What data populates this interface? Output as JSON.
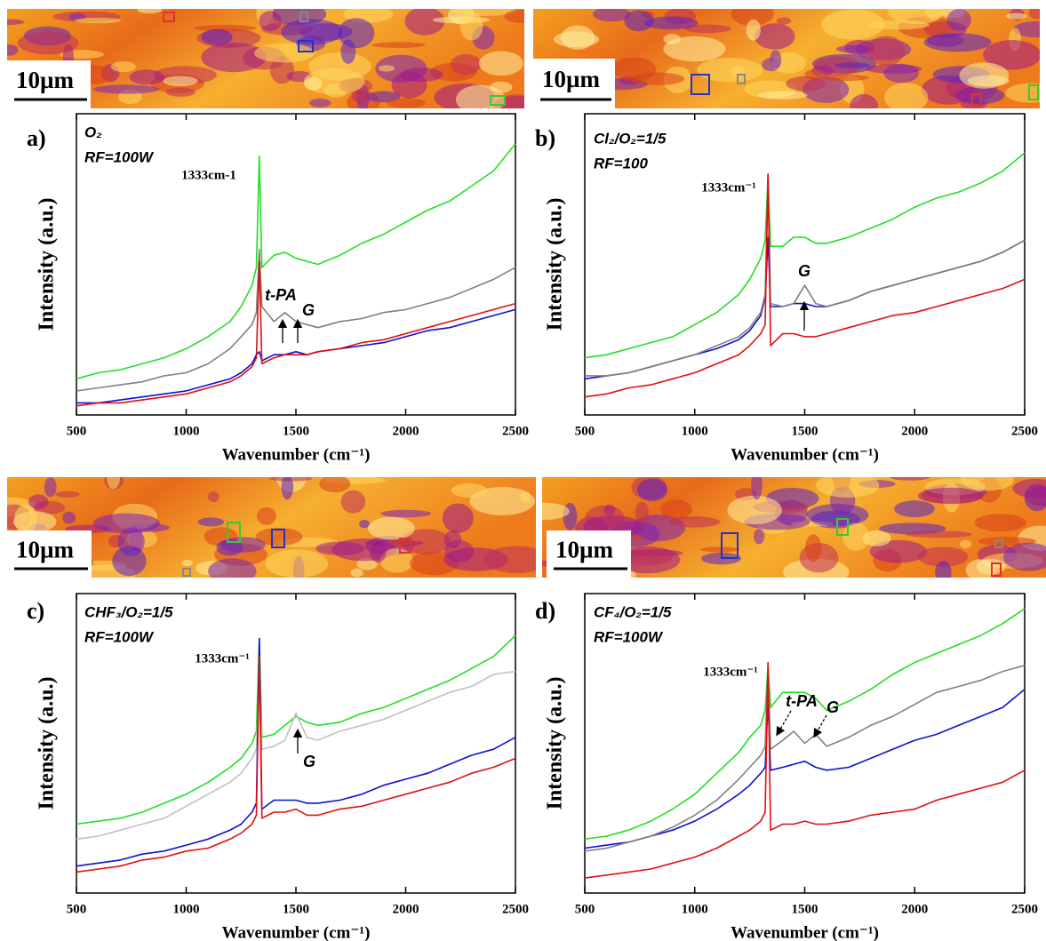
{
  "chart_data": [
    {
      "type": "line",
      "panel": "a)",
      "scale_bar": "10µm",
      "conditions": [
        "O₂",
        "RF=100W"
      ],
      "peak_label": "1333cm-1",
      "markers": [
        "t-PA",
        "G"
      ],
      "xlabel": "Wavenumber (cm⁻¹)",
      "ylabel": "Intensity (a.u.)",
      "xlim": [
        500,
        2500
      ],
      "xticks": [
        500,
        1000,
        1500,
        2000,
        2500
      ],
      "ylim": [
        0,
        100
      ],
      "x": [
        500,
        600,
        700,
        800,
        900,
        1000,
        1100,
        1200,
        1250,
        1300,
        1320,
        1333,
        1345,
        1400,
        1450,
        1500,
        1550,
        1600,
        1700,
        1800,
        1900,
        2000,
        2100,
        2200,
        2300,
        2400,
        2500
      ],
      "series": [
        {
          "color": "#22e022",
          "values": [
            12,
            14,
            15,
            17,
            19,
            22,
            26,
            31,
            36,
            43,
            49,
            86,
            49,
            53,
            54,
            52,
            51,
            50,
            53,
            57,
            60,
            64,
            68,
            71,
            76,
            81,
            90
          ]
        },
        {
          "color": "#808080",
          "values": [
            8,
            9,
            10,
            11,
            13,
            14,
            17,
            22,
            26,
            30,
            34,
            55,
            36,
            31,
            34,
            31,
            30,
            29,
            31,
            32,
            34,
            35,
            37,
            39,
            42,
            45,
            49
          ]
        },
        {
          "color": "#1010d0",
          "values": [
            4,
            4,
            5,
            6,
            7,
            8,
            10,
            12,
            14,
            17,
            20,
            21,
            18,
            20,
            20,
            21,
            20,
            21,
            22,
            23,
            24,
            26,
            28,
            29,
            31,
            33,
            35
          ]
        },
        {
          "color": "#e01010",
          "values": [
            3,
            4,
            4,
            5,
            6,
            7,
            9,
            11,
            13,
            16,
            19,
            51,
            17,
            19,
            20,
            20,
            20,
            21,
            22,
            24,
            25,
            27,
            29,
            31,
            33,
            35,
            37
          ]
        }
      ]
    },
    {
      "type": "line",
      "panel": "b)",
      "scale_bar": "10µm",
      "conditions": [
        "Cl₂/O₂=1/5",
        "RF=100"
      ],
      "peak_label": "1333cm⁻¹",
      "markers": [
        "G"
      ],
      "xlabel": "Wavenumber (cm⁻¹)",
      "ylabel": "Intensity (a.u.)",
      "xlim": [
        500,
        2500
      ],
      "xticks": [
        500,
        1000,
        1500,
        2000,
        2500
      ],
      "ylim": [
        0,
        100
      ],
      "x": [
        500,
        600,
        700,
        800,
        900,
        1000,
        1100,
        1200,
        1250,
        1300,
        1320,
        1333,
        1345,
        1400,
        1450,
        1500,
        1550,
        1600,
        1700,
        1800,
        1900,
        2000,
        2100,
        2200,
        2300,
        2400,
        2500
      ],
      "series": [
        {
          "color": "#22e022",
          "values": [
            19,
            20,
            22,
            24,
            26,
            30,
            34,
            40,
            45,
            52,
            58,
            79,
            56,
            56,
            59,
            59,
            57,
            57,
            59,
            62,
            65,
            69,
            72,
            74,
            77,
            81,
            87
          ]
        },
        {
          "color": "#1010d0",
          "values": [
            12,
            13,
            14,
            16,
            18,
            20,
            22,
            25,
            28,
            33,
            39,
            59,
            36,
            36,
            37,
            37,
            36,
            36,
            38,
            41,
            43,
            45,
            47,
            49,
            51,
            54,
            58
          ]
        },
        {
          "color": "#808080",
          "values": [
            13,
            13,
            14,
            16,
            18,
            20,
            23,
            26,
            29,
            34,
            40,
            80,
            37,
            36,
            37,
            43,
            37,
            36,
            38,
            41,
            43,
            45,
            47,
            49,
            51,
            54,
            58
          ]
        },
        {
          "color": "#e01010",
          "values": [
            6,
            7,
            9,
            10,
            12,
            14,
            17,
            20,
            23,
            27,
            30,
            80,
            23,
            27,
            27,
            26,
            26,
            27,
            29,
            31,
            33,
            34,
            36,
            38,
            40,
            42,
            45
          ]
        }
      ]
    },
    {
      "type": "line",
      "panel": "c)",
      "scale_bar": "10µm",
      "conditions": [
        "CHF₃/O₂=1/5",
        "RF=100W"
      ],
      "peak_label": "1333cm⁻¹",
      "markers": [
        "G"
      ],
      "xlabel": "Wavenumber (cm⁻¹)",
      "ylabel": "Intensity (a.u.)",
      "xlim": [
        500,
        2500
      ],
      "xticks": [
        500,
        1000,
        1500,
        2000,
        2500
      ],
      "ylim": [
        0,
        100
      ],
      "x": [
        500,
        600,
        700,
        800,
        900,
        1000,
        1100,
        1200,
        1250,
        1300,
        1320,
        1333,
        1345,
        1400,
        1450,
        1500,
        1550,
        1600,
        1700,
        1800,
        1900,
        2000,
        2100,
        2200,
        2300,
        2400,
        2500
      ],
      "series": [
        {
          "color": "#22e022",
          "values": [
            23,
            24,
            25,
            27,
            30,
            33,
            37,
            42,
            45,
            50,
            54,
            85,
            52,
            53,
            56,
            59,
            57,
            56,
            57,
            60,
            62,
            65,
            68,
            71,
            75,
            79,
            86
          ]
        },
        {
          "color": "#c0c0c0",
          "values": [
            18,
            19,
            21,
            23,
            25,
            29,
            33,
            37,
            40,
            45,
            48,
            73,
            48,
            49,
            51,
            60,
            52,
            51,
            54,
            56,
            58,
            61,
            64,
            67,
            69,
            73,
            74
          ]
        },
        {
          "color": "#1010d0",
          "values": [
            9,
            10,
            11,
            13,
            14,
            16,
            18,
            21,
            23,
            27,
            30,
            85,
            28,
            31,
            31,
            31,
            30,
            30,
            31,
            33,
            36,
            38,
            40,
            43,
            46,
            48,
            52
          ]
        },
        {
          "color": "#e01010",
          "values": [
            7,
            8,
            9,
            11,
            12,
            14,
            15,
            18,
            20,
            23,
            26,
            79,
            25,
            27,
            27,
            28,
            26,
            26,
            28,
            29,
            31,
            33,
            35,
            37,
            40,
            42,
            45
          ]
        }
      ]
    },
    {
      "type": "line",
      "panel": "d)",
      "scale_bar": "10µm",
      "conditions": [
        "CF₄/O₂=1/5",
        "RF=100W"
      ],
      "peak_label": "1333cm⁻¹",
      "markers": [
        "t-PA",
        "G"
      ],
      "xlabel": "Wavenumber (cm⁻¹)",
      "ylabel": "Intensity (a.u.)",
      "xlim": [
        500,
        2500
      ],
      "xticks": [
        500,
        1000,
        1500,
        2000,
        2500
      ],
      "ylim": [
        0,
        100
      ],
      "x": [
        500,
        600,
        700,
        800,
        900,
        1000,
        1100,
        1200,
        1250,
        1300,
        1320,
        1333,
        1345,
        1400,
        1450,
        1500,
        1550,
        1600,
        1700,
        1800,
        1900,
        2000,
        2100,
        2200,
        2300,
        2400,
        2500
      ],
      "series": [
        {
          "color": "#22e022",
          "values": [
            18,
            19,
            21,
            24,
            28,
            33,
            40,
            47,
            52,
            56,
            61,
            76,
            62,
            67,
            67,
            67,
            65,
            61,
            64,
            68,
            73,
            77,
            80,
            83,
            86,
            90,
            95
          ]
        },
        {
          "color": "#1010d0",
          "values": [
            15,
            16,
            17,
            19,
            21,
            24,
            28,
            33,
            36,
            40,
            42,
            64,
            41,
            42,
            43,
            44,
            42,
            41,
            42,
            45,
            48,
            51,
            53,
            56,
            59,
            62,
            68
          ]
        },
        {
          "color": "#808080",
          "values": [
            14,
            15,
            17,
            19,
            22,
            26,
            31,
            38,
            42,
            46,
            49,
            76,
            48,
            51,
            54,
            50,
            53,
            49,
            52,
            56,
            59,
            63,
            67,
            69,
            71,
            74,
            76
          ]
        },
        {
          "color": "#e01010",
          "values": [
            5,
            6,
            7,
            8,
            10,
            12,
            15,
            19,
            21,
            24,
            27,
            77,
            21,
            23,
            23,
            24,
            23,
            23,
            24,
            26,
            27,
            28,
            31,
            33,
            35,
            37,
            41
          ]
        }
      ]
    }
  ]
}
